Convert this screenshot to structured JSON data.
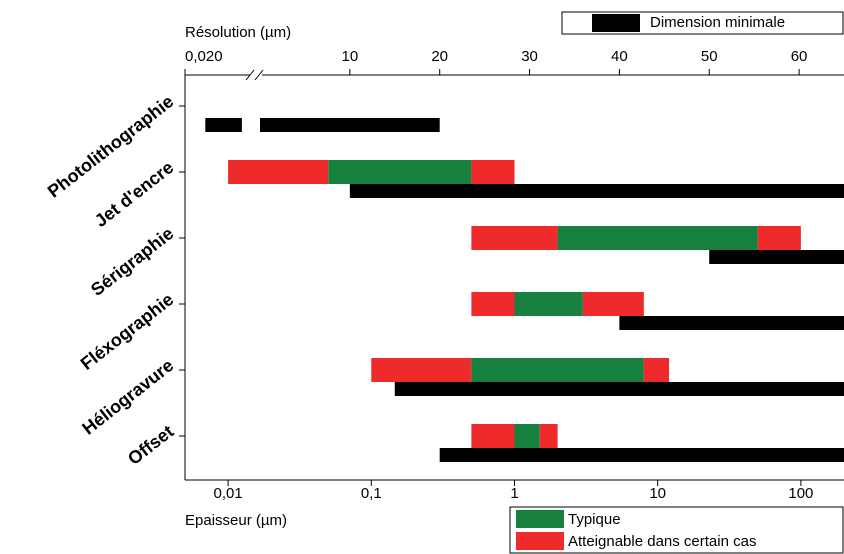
{
  "chart_data": {
    "type": "range-bar",
    "categories": [
      "Photolithographie",
      "Jet d'encre",
      "Sérigraphie",
      "Fléxographie",
      "Héliogravure",
      "Offset"
    ],
    "xlabel": "Epaisseur (µm)",
    "xscale": "log",
    "xlim": [
      0.005,
      200
    ],
    "xticks": [
      {
        "value": 0.01,
        "label": "0,01"
      },
      {
        "value": 0.1,
        "label": "0,1"
      },
      1,
      10,
      100
    ],
    "x2label": "Résolution (µm)",
    "x2lim": [
      0,
      65
    ],
    "x2ticks": [
      10,
      20,
      30,
      40,
      50,
      60
    ],
    "x2break": {
      "lim": [
        0.02,
        0.1
      ],
      "ticks": [
        {
          "value": 0.02,
          "label": "0,020"
        }
      ]
    },
    "series": [
      {
        "name": "Dimension minimale",
        "color": "#000000",
        "axis": "x2",
        "ranges": [
          [
            [
              0,
              20
            ]
          ],
          [
            [
              10,
              65
            ]
          ],
          [
            [
              50,
              65
            ]
          ],
          [
            [
              40,
              65
            ]
          ],
          [
            [
              15,
              65
            ]
          ],
          [
            [
              20,
              65
            ]
          ]
        ],
        "break_ranges": [
          [
            [
              0.045,
              0.09
            ]
          ],
          [],
          [],
          [],
          [],
          []
        ]
      },
      {
        "name": "Typique",
        "color": "#16803f",
        "ranges": [
          [],
          [
            [
              0.05,
              0.5
            ]
          ],
          [
            [
              2,
              50
            ]
          ],
          [
            [
              1,
              3
            ]
          ],
          [
            [
              0.5,
              8
            ]
          ],
          [
            [
              1,
              1.5
            ]
          ]
        ]
      },
      {
        "name": "Atteignable dans certain cas",
        "color": "#ee2a2a",
        "ranges": [
          [],
          [
            [
              0.01,
              0.05
            ],
            [
              0.5,
              1
            ]
          ],
          [
            [
              0.5,
              2
            ],
            [
              50,
              100
            ]
          ],
          [
            [
              0.5,
              1
            ],
            [
              3,
              8
            ]
          ],
          [
            [
              0.1,
              0.5
            ],
            [
              8,
              12
            ]
          ],
          [
            [
              0.5,
              1
            ],
            [
              1.5,
              2
            ]
          ]
        ]
      }
    ]
  }
}
